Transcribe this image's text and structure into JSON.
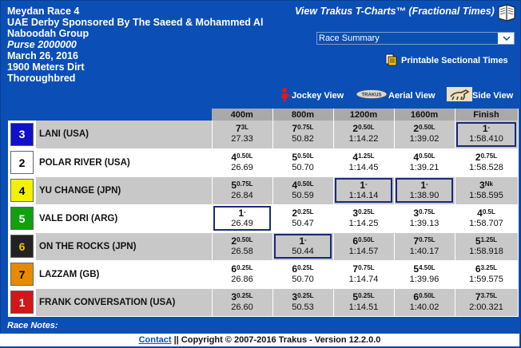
{
  "header": {
    "race": "Meydan Race 4",
    "name_line1": "UAE Derby Sponsored By The Saeed & Mohammed Al",
    "name_line2": "Naboodah Group",
    "purse": "Purse 2000000",
    "date": "March 26, 2016",
    "distance": "1900 Meters Dirt",
    "breed": "Thoroughbred"
  },
  "trakus_title": "View Trakus T-Charts™ (Fractional Times)",
  "race_select": {
    "selected": "Race Summary"
  },
  "printable_link": "Printable Sectional Times",
  "views": {
    "jockey": "Jockey View",
    "aerial": "Aerial View",
    "side": "Side View",
    "aerial_badge": "TRAKUS"
  },
  "columns": [
    "400m",
    "800m",
    "1200m",
    "1600m",
    "Finish"
  ],
  "horses": [
    {
      "num": "3",
      "bg": "#1010c8",
      "fg": "#ffffff",
      "name": "LANI (USA)",
      "calls": [
        {
          "pos": "7",
          "mg": "3L",
          "time": "27.33"
        },
        {
          "pos": "7",
          "mg": "0.75L",
          "time": "50.82"
        },
        {
          "pos": "2",
          "mg": "0.50L",
          "time": "1:14.22"
        },
        {
          "pos": "2",
          "mg": "0.50L",
          "time": "1:39.02"
        },
        {
          "pos": "1",
          "mg": "-",
          "time": "1:58.410",
          "hl": true
        }
      ]
    },
    {
      "num": "2",
      "bg": "#ffffff",
      "fg": "#000000",
      "name": "POLAR RIVER (USA)",
      "calls": [
        {
          "pos": "4",
          "mg": "0.50L",
          "time": "26.69"
        },
        {
          "pos": "5",
          "mg": "0.50L",
          "time": "50.70"
        },
        {
          "pos": "4",
          "mg": "1.25L",
          "time": "1:14.45"
        },
        {
          "pos": "4",
          "mg": "0.50L",
          "time": "1:39.21"
        },
        {
          "pos": "2",
          "mg": "0.75L",
          "time": "1:58.528"
        }
      ]
    },
    {
      "num": "4",
      "bg": "#f2f200",
      "fg": "#000000",
      "name": "YU CHANGE (JPN)",
      "calls": [
        {
          "pos": "5",
          "mg": "0.75L",
          "time": "26.84"
        },
        {
          "pos": "4",
          "mg": "0.50L",
          "time": "50.59"
        },
        {
          "pos": "1",
          "mg": "-",
          "time": "1:14.14",
          "hl": true
        },
        {
          "pos": "1",
          "mg": "-",
          "time": "1:38.90",
          "hl": true
        },
        {
          "pos": "3",
          "mg": "Nk",
          "time": "1:58.595"
        }
      ]
    },
    {
      "num": "5",
      "bg": "#10a010",
      "fg": "#ffffff",
      "name": "VALE DORI (ARG)",
      "calls": [
        {
          "pos": "1",
          "mg": "-",
          "time": "26.49",
          "hl": true
        },
        {
          "pos": "2",
          "mg": "0.25L",
          "time": "50.47"
        },
        {
          "pos": "3",
          "mg": "0.25L",
          "time": "1:14.25"
        },
        {
          "pos": "3",
          "mg": "0.75L",
          "time": "1:39.13"
        },
        {
          "pos": "4",
          "mg": "0.5L",
          "time": "1:58.707"
        }
      ]
    },
    {
      "num": "6",
      "bg": "#222222",
      "fg": "#f2c400",
      "name": "ON THE ROCKS (JPN)",
      "calls": [
        {
          "pos": "2",
          "mg": "0.50L",
          "time": "26.58"
        },
        {
          "pos": "1",
          "mg": "-",
          "time": "50.44",
          "hl": true
        },
        {
          "pos": "6",
          "mg": "0.50L",
          "time": "1:14.57"
        },
        {
          "pos": "7",
          "mg": "0.75L",
          "time": "1:40.17"
        },
        {
          "pos": "5",
          "mg": "1.25L",
          "time": "1:58.918"
        }
      ]
    },
    {
      "num": "7",
      "bg": "#e88a00",
      "fg": "#000000",
      "name": "LAZZAM (GB)",
      "calls": [
        {
          "pos": "6",
          "mg": "0.25L",
          "time": "26.86"
        },
        {
          "pos": "6",
          "mg": "0.25L",
          "time": "50.70"
        },
        {
          "pos": "7",
          "mg": "0.75L",
          "time": "1:14.74"
        },
        {
          "pos": "5",
          "mg": "4.50L",
          "time": "1:39.96"
        },
        {
          "pos": "6",
          "mg": "3.25L",
          "time": "1:59.575"
        }
      ]
    },
    {
      "num": "1",
      "bg": "#d01818",
      "fg": "#ffffff",
      "name": "FRANK CONVERSATION (USA)",
      "calls": [
        {
          "pos": "3",
          "mg": "0.25L",
          "time": "26.60"
        },
        {
          "pos": "3",
          "mg": "0.25L",
          "time": "50.53"
        },
        {
          "pos": "5",
          "mg": "0.25L",
          "time": "1:14.51"
        },
        {
          "pos": "6",
          "mg": "0.50L",
          "time": "1:40.02"
        },
        {
          "pos": "7",
          "mg": "3.75L",
          "time": "2:00.321"
        }
      ]
    }
  ],
  "race_notes_label": "Race Notes:",
  "footer": {
    "contact": "Contact",
    "copyright": " || Copyright © 2007-2016 Trakus - Version 12.2.0.0"
  }
}
